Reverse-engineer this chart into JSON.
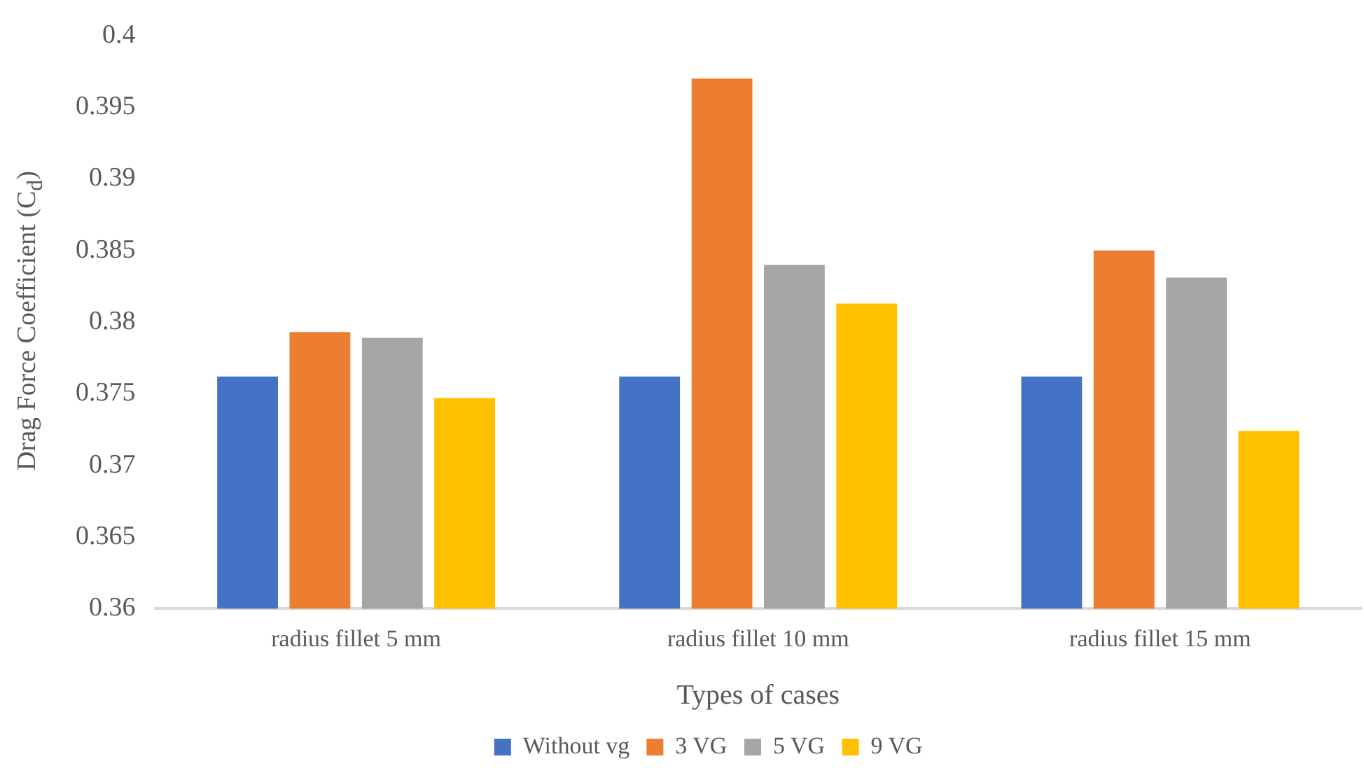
{
  "chart_data": {
    "type": "bar",
    "xlabel": "Types of cases",
    "ylabel": "Drag Force  Coefficient (C$_{d}$)",
    "categories": [
      "radius fillet 5 mm",
      "radius fillet 10 mm",
      "radius fillet 15 mm"
    ],
    "series": [
      {
        "name": "Without vg",
        "color": "#4472c4",
        "values": [
          0.3762,
          0.3762,
          0.3762
        ]
      },
      {
        "name": "3 VG",
        "color": "#ed7d31",
        "values": [
          0.3793,
          0.397,
          0.385
        ]
      },
      {
        "name": "5 VG",
        "color": "#a5a5a5",
        "values": [
          0.3789,
          0.384,
          0.3831
        ]
      },
      {
        "name": "9 VG",
        "color": "#ffc000",
        "values": [
          0.3747,
          0.3813,
          0.3724
        ]
      }
    ],
    "ylim": [
      0.36,
      0.4
    ],
    "yticks": [
      0.36,
      0.365,
      0.37,
      0.375,
      0.38,
      0.385,
      0.39,
      0.395,
      0.4
    ],
    "grid": false,
    "legend": "bottom"
  }
}
